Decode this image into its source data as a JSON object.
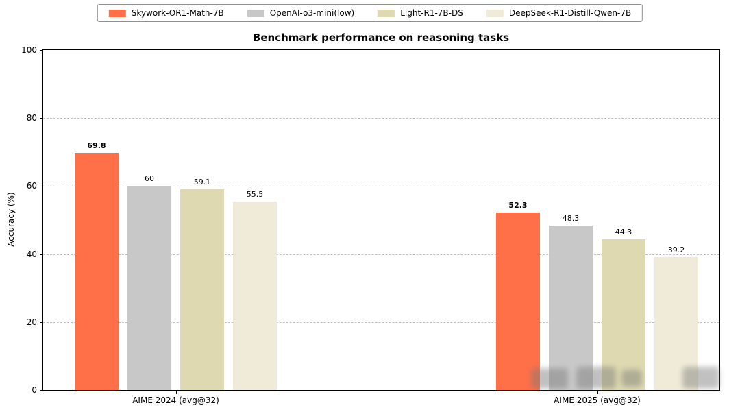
{
  "chart_data": {
    "type": "bar",
    "title": "Benchmark performance on reasoning tasks",
    "xlabel": "",
    "ylabel": "Accuracy (%)",
    "ylim": [
      0,
      100
    ],
    "yticks": [
      0,
      20,
      40,
      60,
      80,
      100
    ],
    "grid": "horizontal-dashed",
    "legend_position": "top-outside-centered",
    "categories": [
      "AIME 2024 (avg@32)",
      "AIME 2025 (avg@32)"
    ],
    "series": [
      {
        "name": "Skywork-OR1-Math-7B",
        "color": "#FF7048",
        "values": [
          69.8,
          52.3
        ],
        "value_labels": [
          "69.8",
          "52.3"
        ],
        "label_bold": true
      },
      {
        "name": "OpenAI-o3-mini(low)",
        "color": "#C8C8C8",
        "values": [
          60,
          48.3
        ],
        "value_labels": [
          "60",
          "48.3"
        ],
        "label_bold": false
      },
      {
        "name": "Light-R1-7B-DS",
        "color": "#DED9B0",
        "values": [
          59.1,
          44.3
        ],
        "value_labels": [
          "59.1",
          "44.3"
        ],
        "label_bold": false
      },
      {
        "name": "DeepSeek-R1-Distill-Qwen-7B",
        "color": "#F0EBD8",
        "values": [
          55.5,
          39.2
        ],
        "value_labels": [
          "55.5",
          "39.2"
        ],
        "label_bold": false
      }
    ]
  }
}
